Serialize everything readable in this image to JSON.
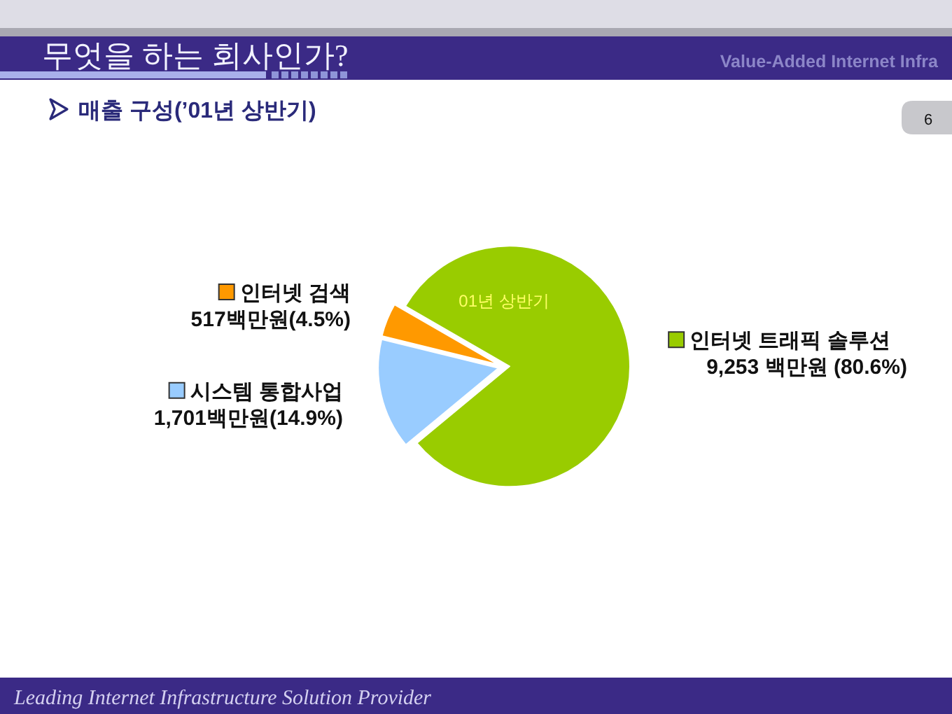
{
  "chart_data": {
    "type": "pie",
    "title": "무엇을 하는 회사인가?",
    "subtitle": "매출 구성(’01년 상반기)",
    "categories": [
      "인터넷 트래픽 솔루션",
      "시스템 통합사업",
      "인터넷 검색"
    ],
    "values": [
      9253,
      1701,
      517
    ],
    "colors": [
      "#99cc00",
      "#99ccff",
      "#ff9900"
    ],
    "value_labels": [
      "9,253 백만원 (80.6%)",
      "1,701백만원(14.9%)",
      "517백만원(4.5%)"
    ],
    "legend": true,
    "annotations": [
      "01년 상반기",
      "Value-Added Internet Infra",
      "6",
      "Leading Internet Infrastructure Solution Provider"
    ]
  }
}
